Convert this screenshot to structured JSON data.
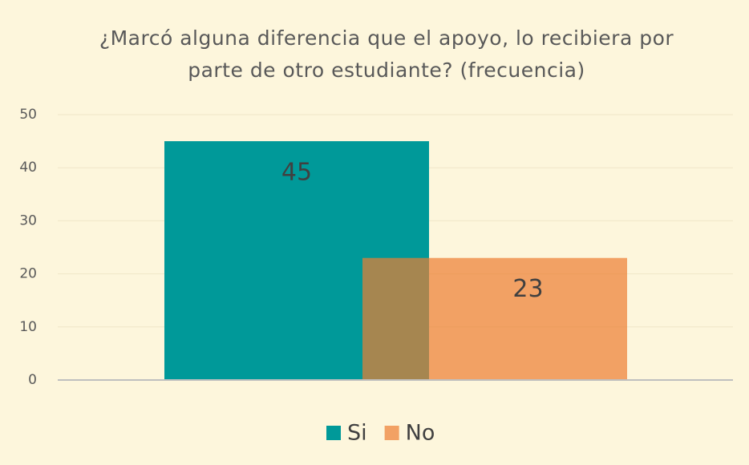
{
  "chart_data": {
    "type": "bar",
    "title": "¿Marcó alguna diferencia que el apoyo, lo recibiera por parte de otro estudiante? (frecuencia)",
    "series": [
      {
        "name": "Si",
        "color": "#009999",
        "opacity": 1,
        "values": [
          45
        ]
      },
      {
        "name": "No",
        "color": "#ED7D31",
        "opacity": 0.7,
        "values": [
          23
        ]
      }
    ],
    "ylim": [
      0,
      50
    ],
    "yticks": [
      0,
      10,
      20,
      30,
      40,
      50
    ],
    "grid": true,
    "legend": "bottom"
  }
}
